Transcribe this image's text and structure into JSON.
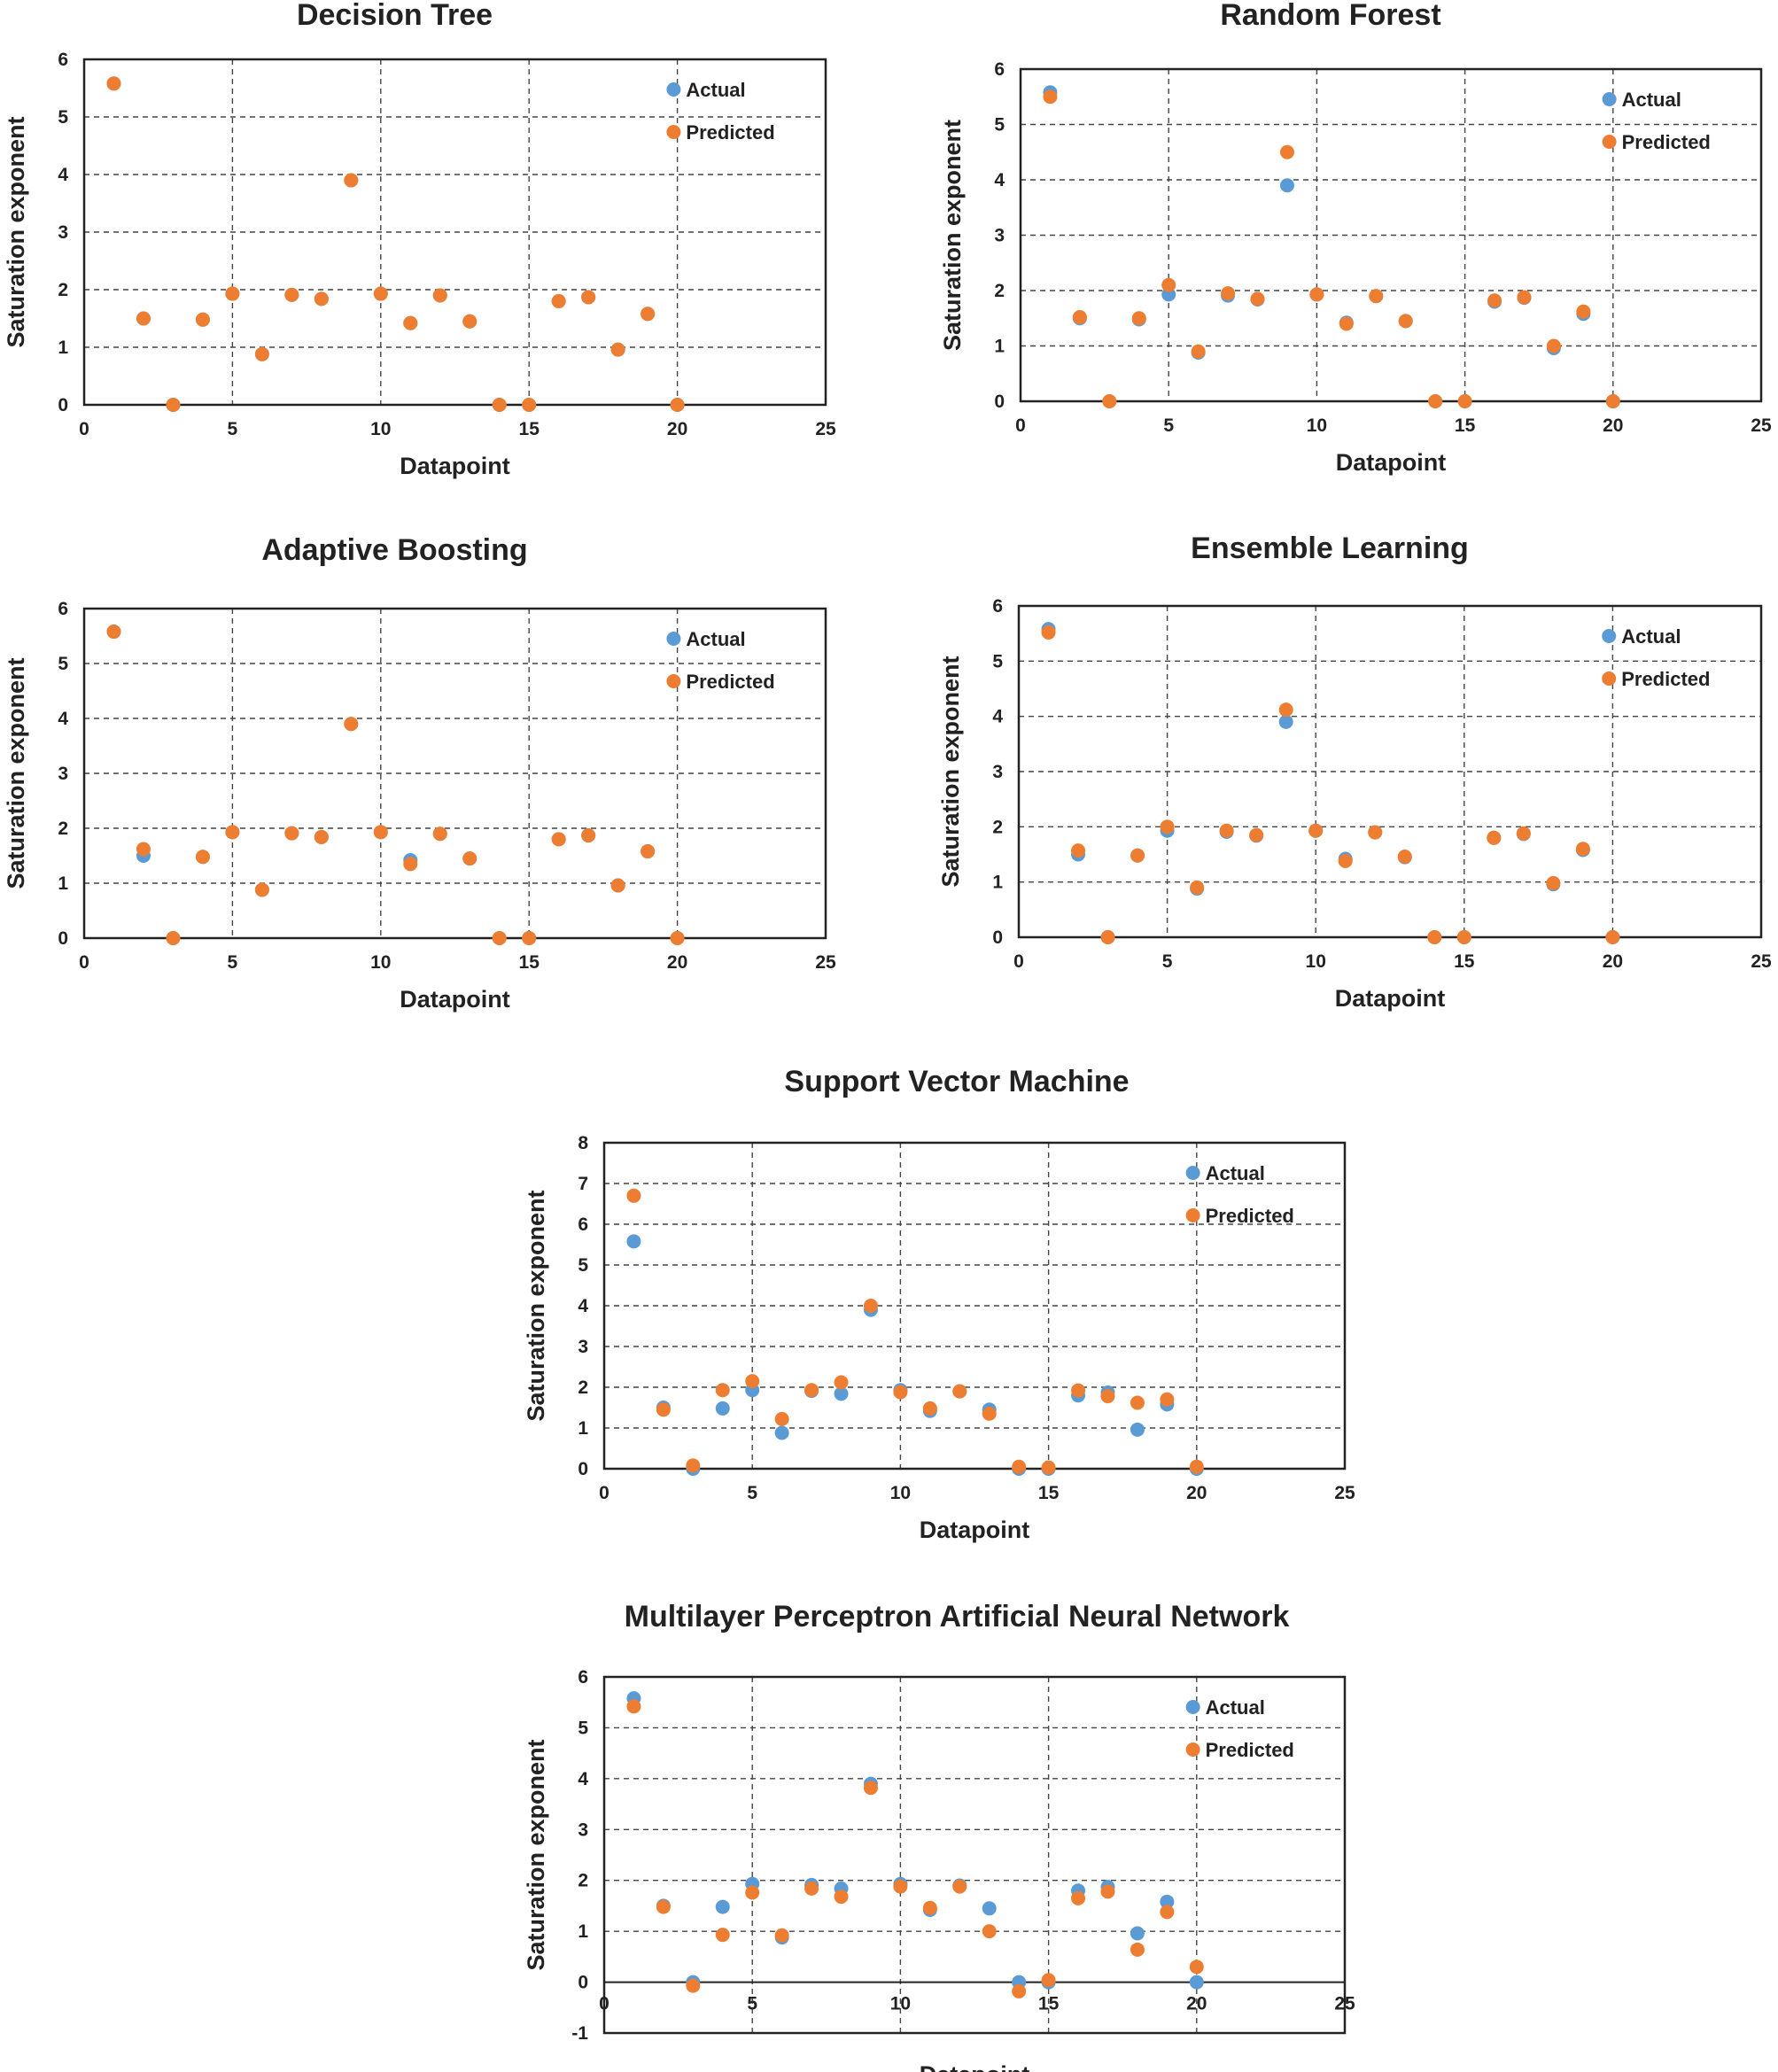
{
  "colors": {
    "actual": "#5B9BD5",
    "predicted": "#ED7D31"
  },
  "chart_data": [
    {
      "type": "scatter",
      "title": "Decision Tree",
      "xlabel": "Datapoint",
      "ylabel": "Saturation exponent",
      "xlim": [
        0,
        25
      ],
      "ylim": [
        0,
        6
      ],
      "xticks": [
        0,
        5,
        10,
        15,
        20,
        25
      ],
      "yticks": [
        0,
        1,
        2,
        3,
        4,
        5,
        6
      ],
      "grid": true,
      "legend": "top-right",
      "x": [
        1,
        2,
        3,
        4,
        5,
        6,
        7,
        8,
        9,
        10,
        11,
        12,
        13,
        14,
        15,
        16,
        17,
        18,
        19,
        20
      ],
      "series": [
        {
          "name": "Actual",
          "values": [
            5.58,
            1.5,
            0,
            1.48,
            1.93,
            0.88,
            1.91,
            1.84,
            3.9,
            1.93,
            1.42,
            1.9,
            1.45,
            0,
            0,
            1.8,
            1.87,
            0.96,
            1.58,
            0
          ]
        },
        {
          "name": "Predicted",
          "values": [
            5.58,
            1.5,
            0,
            1.48,
            1.93,
            0.88,
            1.91,
            1.84,
            3.9,
            1.93,
            1.42,
            1.9,
            1.45,
            0,
            0,
            1.8,
            1.87,
            0.96,
            1.58,
            0
          ]
        }
      ]
    },
    {
      "type": "scatter",
      "title": "Random Forest",
      "xlabel": "Datapoint",
      "ylabel": "Saturation exponent",
      "xlim": [
        0,
        25
      ],
      "ylim": [
        0,
        6
      ],
      "xticks": [
        0,
        5,
        10,
        15,
        20,
        25
      ],
      "yticks": [
        0,
        1,
        2,
        3,
        4,
        5,
        6
      ],
      "grid": true,
      "legend": "top-right",
      "x": [
        1,
        2,
        3,
        4,
        5,
        6,
        7,
        8,
        9,
        10,
        11,
        12,
        13,
        14,
        15,
        16,
        17,
        18,
        19,
        20
      ],
      "series": [
        {
          "name": "Actual",
          "values": [
            5.58,
            1.5,
            0,
            1.48,
            1.93,
            0.88,
            1.91,
            1.84,
            3.9,
            1.93,
            1.42,
            1.9,
            1.45,
            0,
            0,
            1.8,
            1.87,
            0.96,
            1.58,
            0
          ]
        },
        {
          "name": "Predicted",
          "values": [
            5.5,
            1.52,
            0,
            1.5,
            2.1,
            0.9,
            1.95,
            1.85,
            4.5,
            1.93,
            1.4,
            1.9,
            1.45,
            0,
            0,
            1.82,
            1.88,
            1.0,
            1.62,
            0
          ]
        }
      ]
    },
    {
      "type": "scatter",
      "title": "Adaptive Boosting",
      "xlabel": "Datapoint",
      "ylabel": "Saturation exponent",
      "xlim": [
        0,
        25
      ],
      "ylim": [
        0,
        6
      ],
      "xticks": [
        0,
        5,
        10,
        15,
        20,
        25
      ],
      "yticks": [
        0,
        1,
        2,
        3,
        4,
        5,
        6
      ],
      "grid": true,
      "legend": "top-right",
      "x": [
        1,
        2,
        3,
        4,
        5,
        6,
        7,
        8,
        9,
        10,
        11,
        12,
        13,
        14,
        15,
        16,
        17,
        18,
        19,
        20
      ],
      "series": [
        {
          "name": "Actual",
          "values": [
            5.58,
            1.5,
            0,
            1.48,
            1.93,
            0.88,
            1.91,
            1.84,
            3.9,
            1.93,
            1.42,
            1.9,
            1.45,
            0,
            0,
            1.8,
            1.87,
            0.96,
            1.58,
            0
          ]
        },
        {
          "name": "Predicted",
          "values": [
            5.58,
            1.62,
            0,
            1.48,
            1.93,
            0.88,
            1.91,
            1.84,
            3.9,
            1.93,
            1.35,
            1.9,
            1.45,
            0,
            0,
            1.8,
            1.87,
            0.96,
            1.58,
            0
          ]
        }
      ]
    },
    {
      "type": "scatter",
      "title": "Ensemble Learning",
      "xlabel": "Datapoint",
      "ylabel": "Saturation exponent",
      "xlim": [
        0,
        25
      ],
      "ylim": [
        0,
        6
      ],
      "xticks": [
        0,
        5,
        10,
        15,
        20,
        25
      ],
      "yticks": [
        0,
        1,
        2,
        3,
        4,
        5,
        6
      ],
      "grid": true,
      "legend": "top-right",
      "x": [
        1,
        2,
        3,
        4,
        5,
        6,
        7,
        8,
        9,
        10,
        11,
        12,
        13,
        14,
        15,
        16,
        17,
        18,
        19,
        20
      ],
      "series": [
        {
          "name": "Actual",
          "values": [
            5.58,
            1.5,
            0,
            1.48,
            1.93,
            0.88,
            1.91,
            1.84,
            3.9,
            1.93,
            1.42,
            1.9,
            1.45,
            0,
            0,
            1.8,
            1.87,
            0.96,
            1.58,
            0
          ]
        },
        {
          "name": "Predicted",
          "values": [
            5.52,
            1.57,
            0,
            1.48,
            2.0,
            0.9,
            1.93,
            1.85,
            4.12,
            1.93,
            1.38,
            1.9,
            1.46,
            0,
            0,
            1.8,
            1.88,
            0.98,
            1.6,
            0
          ]
        }
      ]
    },
    {
      "type": "scatter",
      "title": "Support Vector Machine",
      "xlabel": "Datapoint",
      "ylabel": "Saturation exponent",
      "xlim": [
        0,
        25
      ],
      "ylim": [
        0,
        8
      ],
      "xticks": [
        0,
        5,
        10,
        15,
        20,
        25
      ],
      "yticks": [
        0,
        1,
        2,
        3,
        4,
        5,
        6,
        7,
        8
      ],
      "grid": true,
      "legend": "top-right",
      "x": [
        1,
        2,
        3,
        4,
        5,
        6,
        7,
        8,
        9,
        10,
        11,
        12,
        13,
        14,
        15,
        16,
        17,
        18,
        19,
        20
      ],
      "series": [
        {
          "name": "Actual",
          "values": [
            5.58,
            1.5,
            0,
            1.48,
            1.93,
            0.88,
            1.91,
            1.84,
            3.9,
            1.93,
            1.42,
            1.9,
            1.45,
            0,
            0,
            1.8,
            1.87,
            0.96,
            1.58,
            0
          ]
        },
        {
          "name": "Predicted",
          "values": [
            6.7,
            1.45,
            0.08,
            1.93,
            2.15,
            1.22,
            1.93,
            2.12,
            4.0,
            1.88,
            1.48,
            1.9,
            1.35,
            0.05,
            0.03,
            1.92,
            1.78,
            1.62,
            1.7,
            0.05
          ]
        }
      ]
    },
    {
      "type": "scatter",
      "title": "Multilayer Perceptron Artificial Neural Network",
      "xlabel": "Datapoint",
      "ylabel": "Saturation exponent",
      "xlim": [
        0,
        25
      ],
      "ylim": [
        -1,
        6
      ],
      "xticks": [
        0,
        5,
        10,
        15,
        20,
        25
      ],
      "yticks": [
        -1,
        0,
        1,
        2,
        3,
        4,
        5,
        6
      ],
      "grid": true,
      "legend": "top-right",
      "x": [
        1,
        2,
        3,
        4,
        5,
        6,
        7,
        8,
        9,
        10,
        11,
        12,
        13,
        14,
        15,
        16,
        17,
        18,
        19,
        20
      ],
      "series": [
        {
          "name": "Actual",
          "values": [
            5.58,
            1.5,
            0,
            1.48,
            1.93,
            0.88,
            1.91,
            1.84,
            3.9,
            1.93,
            1.42,
            1.9,
            1.45,
            0,
            0,
            1.8,
            1.87,
            0.96,
            1.58,
            0
          ]
        },
        {
          "name": "Predicted",
          "values": [
            5.42,
            1.48,
            -0.07,
            0.93,
            1.76,
            0.92,
            1.84,
            1.68,
            3.82,
            1.88,
            1.46,
            1.88,
            1.0,
            -0.18,
            0.04,
            1.65,
            1.78,
            0.64,
            1.38,
            0.3
          ]
        }
      ]
    }
  ]
}
